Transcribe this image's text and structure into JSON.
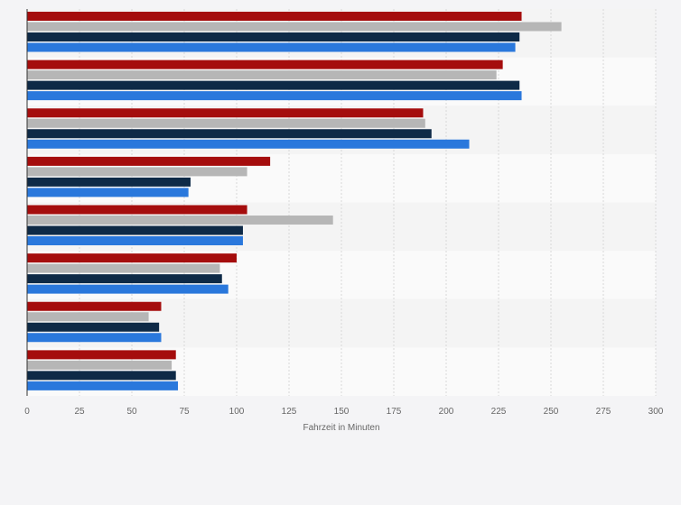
{
  "chart_data": {
    "type": "bar",
    "orientation": "horizontal",
    "xlabel": "Fahrzeit in Minuten",
    "ylabel": "",
    "xlim": [
      0,
      300
    ],
    "x_ticks": [
      0,
      25,
      50,
      75,
      100,
      125,
      150,
      175,
      200,
      225,
      250,
      275,
      300
    ],
    "grid": true,
    "categories": [
      "",
      "",
      "",
      "",
      "",
      "",
      "",
      ""
    ],
    "series": [
      {
        "color": "#a50d0d",
        "values": [
          236,
          227,
          189,
          116,
          105,
          100,
          64,
          71
        ]
      },
      {
        "color": "#b6b6b6",
        "values": [
          255,
          224,
          190,
          105,
          146,
          92,
          58,
          69
        ]
      },
      {
        "color": "#0e2a47",
        "values": [
          235,
          235,
          193,
          78,
          103,
          93,
          63,
          71
        ]
      },
      {
        "color": "#2a78dc",
        "values": [
          233,
          236,
          211,
          77,
          103,
          96,
          64,
          72
        ]
      }
    ],
    "colors": {
      "band_odd": "#f4f4f4",
      "band_even": "#fafafa",
      "axis": "#333333"
    }
  }
}
